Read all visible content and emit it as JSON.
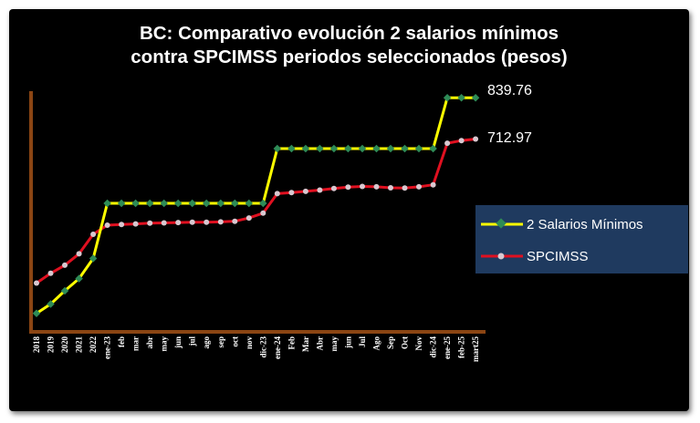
{
  "chart_data": {
    "type": "line",
    "title": [
      "BC: Comparativo evolución 2 salarios mínimos",
      "contra SPCIMSS periodos seleccionados (pesos)"
    ],
    "categories": [
      "2018",
      "2019",
      "2020",
      "2021",
      "2022",
      "ene-23",
      "feb",
      "mar",
      "abr",
      "may",
      "jun",
      "jul",
      "ago",
      "sep",
      "oct",
      "nov",
      "dic-23",
      "ene-24",
      "Feb",
      "Mar",
      "Abr",
      "may",
      "jun",
      "Jul",
      "Ago",
      "Sep",
      "Oct",
      "Nov",
      "dic-24",
      "ene-25",
      "feb-25",
      "mart25"
    ],
    "ylim": [
      120,
      860
    ],
    "series": [
      {
        "name": "2 Salarios Mínimos",
        "color": "#ffff00",
        "marker_color": "#2e8b57",
        "values": [
          176.72,
          205.36,
          246.16,
          283.56,
          345.56,
          515.14,
          515.14,
          515.14,
          515.14,
          515.14,
          515.14,
          515.14,
          515.14,
          515.14,
          515.14,
          515.14,
          515.14,
          683.28,
          683.28,
          683.28,
          683.28,
          683.28,
          683.28,
          683.28,
          683.28,
          683.28,
          683.28,
          683.28,
          683.28,
          839.76,
          839.76,
          839.76
        ]
      },
      {
        "name": "SPCIMSS",
        "color": "#e01020",
        "marker_color": "#d8c8d0",
        "values": [
          270.0,
          300.0,
          325.0,
          360.0,
          420.0,
          448.0,
          450.0,
          452.0,
          454.0,
          455.0,
          456.0,
          457.0,
          457.0,
          458.0,
          460.0,
          470.0,
          485.0,
          545.0,
          548.0,
          552.0,
          556.0,
          561.0,
          565.0,
          567.0,
          566.0,
          563.0,
          562.0,
          566.0,
          572.0,
          700.0,
          708.0,
          712.97
        ]
      }
    ],
    "end_labels": [
      "839.76",
      "712.97"
    ],
    "legend": [
      "2 Salarios Mínimos",
      "SPCIMSS"
    ],
    "legend_position": "right"
  }
}
